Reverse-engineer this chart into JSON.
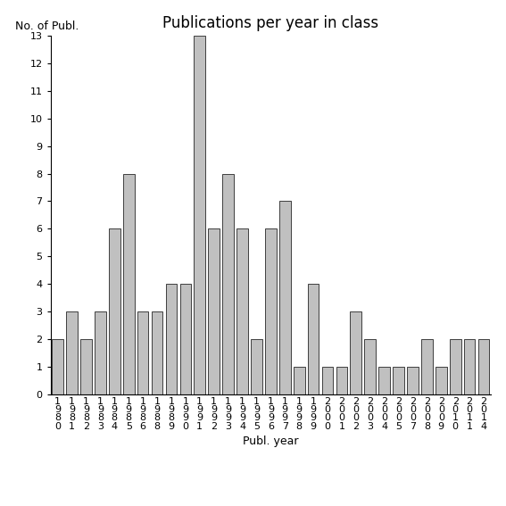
{
  "title": "Publications per year in class",
  "xlabel": "Publ. year",
  "ylabel": "No. of Publ.",
  "years": [
    "1980",
    "1981",
    "1982",
    "1983",
    "1984",
    "1985",
    "1986",
    "1988",
    "1989",
    "1990",
    "1991",
    "1992",
    "1993",
    "1994",
    "1995",
    "1996",
    "1997",
    "1998",
    "1999",
    "2000",
    "2001",
    "2002",
    "2003",
    "2004",
    "2005",
    "2007",
    "2008",
    "2009",
    "2010",
    "2011",
    "2014"
  ],
  "values": [
    2,
    3,
    2,
    3,
    6,
    8,
    3,
    3,
    4,
    4,
    13,
    6,
    8,
    6,
    2,
    6,
    7,
    1,
    4,
    1,
    1,
    3,
    2,
    1,
    1,
    1,
    2,
    1,
    2,
    2,
    2
  ],
  "bar_color": "#c0c0c0",
  "bar_edgecolor": "#000000",
  "ylim": [
    0,
    13
  ],
  "yticks": [
    0,
    1,
    2,
    3,
    4,
    5,
    6,
    7,
    8,
    9,
    10,
    11,
    12,
    13
  ],
  "title_fontsize": 12,
  "label_fontsize": 9,
  "tick_fontsize": 8
}
